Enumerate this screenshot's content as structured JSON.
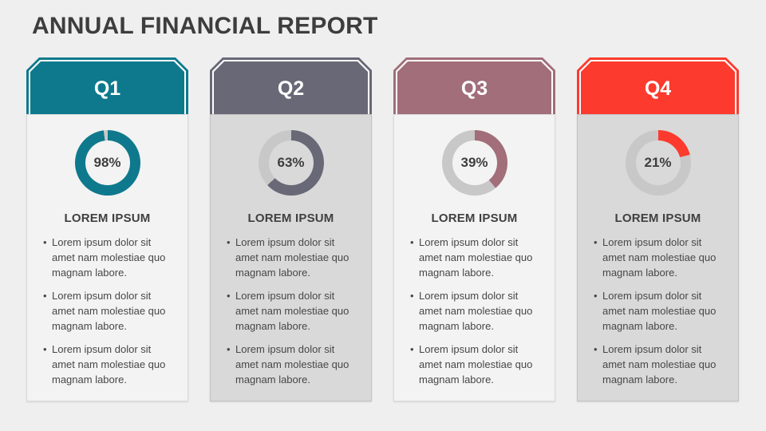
{
  "slide": {
    "title": "ANNUAL FINANCIAL REPORT",
    "title_color": "#3d3d3d",
    "background": "#efeff0"
  },
  "donut_track": "#c8c8c9",
  "cards": [
    {
      "quarter": "Q1",
      "accent": "#0e798d",
      "percent": 98,
      "percent_label": "98%",
      "body_bg": "#f3f3f3",
      "heading": "LOREM IPSUM",
      "bullets": [
        "Lorem ipsum dolor sit amet nam molestiae quo magnam labore.",
        "Lorem ipsum dolor sit amet nam molestiae quo magnam labore.",
        "Lorem ipsum dolor sit amet nam molestiae quo magnam labore."
      ]
    },
    {
      "quarter": "Q2",
      "accent": "#696877",
      "percent": 63,
      "percent_label": "63%",
      "body_bg": "#d9d9d9",
      "heading": "LOREM IPSUM",
      "bullets": [
        "Lorem ipsum dolor sit amet nam molestiae quo magnam labore.",
        "Lorem ipsum dolor sit amet nam molestiae quo magnam labore.",
        "Lorem ipsum dolor sit amet nam molestiae quo magnam labore."
      ]
    },
    {
      "quarter": "Q3",
      "accent": "#a16e79",
      "percent": 39,
      "percent_label": "39%",
      "body_bg": "#f3f3f3",
      "heading": "LOREM IPSUM",
      "bullets": [
        "Lorem ipsum dolor sit amet nam molestiae quo magnam labore.",
        "Lorem ipsum dolor sit amet nam molestiae quo magnam labore.",
        "Lorem ipsum dolor sit amet nam molestiae quo magnam labore."
      ]
    },
    {
      "quarter": "Q4",
      "accent": "#fc3a2e",
      "percent": 21,
      "percent_label": "21%",
      "body_bg": "#d9d9d9",
      "heading": "LOREM IPSUM",
      "bullets": [
        "Lorem ipsum dolor sit amet nam molestiae quo magnam labore.",
        "Lorem ipsum dolor sit amet nam molestiae quo magnam labore.",
        "Lorem ipsum dolor sit amet nam molestiae quo magnam labore."
      ]
    }
  ],
  "chart_data": [
    {
      "type": "pie",
      "subtype": "donut",
      "title": "Q1",
      "labels": [
        "filled",
        "remainder"
      ],
      "values": [
        98,
        2
      ],
      "colors": [
        "#0e798d",
        "#c8c8c9"
      ],
      "center_label": "98%",
      "start_angle": "top",
      "direction": "clockwise"
    },
    {
      "type": "pie",
      "subtype": "donut",
      "title": "Q2",
      "labels": [
        "filled",
        "remainder"
      ],
      "values": [
        63,
        37
      ],
      "colors": [
        "#696877",
        "#c8c8c9"
      ],
      "center_label": "63%",
      "start_angle": "top",
      "direction": "clockwise"
    },
    {
      "type": "pie",
      "subtype": "donut",
      "title": "Q3",
      "labels": [
        "filled",
        "remainder"
      ],
      "values": [
        39,
        61
      ],
      "colors": [
        "#a16e79",
        "#c8c8c9"
      ],
      "center_label": "39%",
      "start_angle": "top",
      "direction": "clockwise"
    },
    {
      "type": "pie",
      "subtype": "donut",
      "title": "Q4",
      "labels": [
        "filled",
        "remainder"
      ],
      "values": [
        21,
        79
      ],
      "colors": [
        "#fc3a2e",
        "#c8c8c9"
      ],
      "center_label": "21%",
      "start_angle": "top",
      "direction": "clockwise"
    }
  ]
}
